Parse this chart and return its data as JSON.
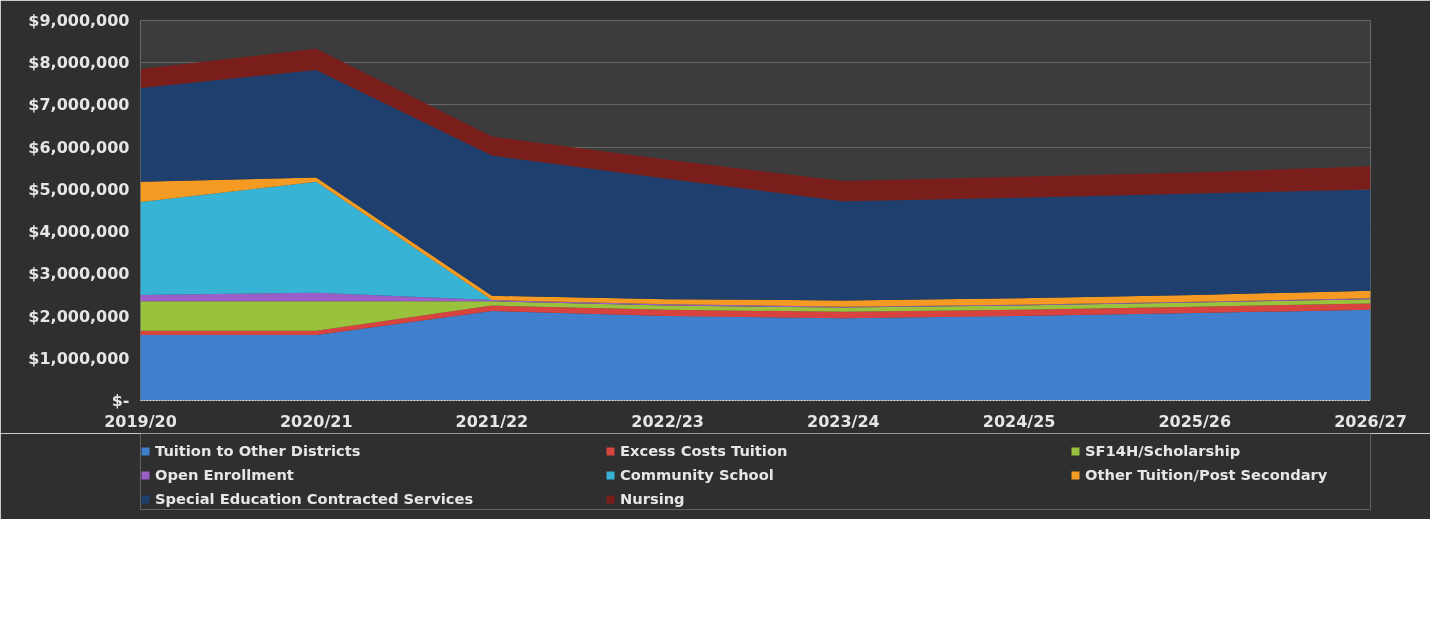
{
  "chart_data": {
    "type": "area",
    "stacked": true,
    "categories": [
      "2019/20",
      "2020/21",
      "2021/22",
      "2022/23",
      "2023/24",
      "2024/25",
      "2025/26",
      "2026/27"
    ],
    "series": [
      {
        "name": "Tuition to Other Districts",
        "color": "#3f7fce",
        "values": [
          1550000,
          1550000,
          2120000,
          2000000,
          1950000,
          2000000,
          2070000,
          2150000
        ]
      },
      {
        "name": "Excess Costs Tuition",
        "color": "#d9433f",
        "values": [
          100000,
          100000,
          130000,
          150000,
          150000,
          150000,
          150000,
          150000
        ]
      },
      {
        "name": "SF14H/Scholarship",
        "color": "#9bc23c",
        "values": [
          700000,
          700000,
          100000,
          100000,
          100000,
          100000,
          100000,
          100000
        ]
      },
      {
        "name": "Open Enrollment",
        "color": "#9b5fc9",
        "values": [
          150000,
          200000,
          30000,
          30000,
          20000,
          20000,
          20000,
          20000
        ]
      },
      {
        "name": "Community School",
        "color": "#37b3d6",
        "values": [
          2200000,
          2630000,
          0,
          0,
          0,
          0,
          0,
          0
        ]
      },
      {
        "name": "Other Tuition/Post Secondary",
        "color": "#f59a23",
        "values": [
          480000,
          100000,
          100000,
          120000,
          150000,
          150000,
          160000,
          180000
        ]
      },
      {
        "name": "Special Education Contracted Services",
        "color": "#1f3f6e",
        "values": [
          2220000,
          2550000,
          3320000,
          2850000,
          2350000,
          2380000,
          2400000,
          2400000
        ]
      },
      {
        "name": "Nursing",
        "color": "#7a1e1c",
        "values": [
          450000,
          500000,
          450000,
          450000,
          480000,
          500000,
          500000,
          550000
        ]
      }
    ],
    "ylim": [
      0,
      9000000
    ],
    "yticks": [
      {
        "value": 0,
        "label": "$-"
      },
      {
        "value": 1000000,
        "label": "$1,000,000"
      },
      {
        "value": 2000000,
        "label": "$2,000,000"
      },
      {
        "value": 3000000,
        "label": "$3,000,000"
      },
      {
        "value": 4000000,
        "label": "$4,000,000"
      },
      {
        "value": 5000000,
        "label": "$5,000,000"
      },
      {
        "value": 6000000,
        "label": "$6,000,000"
      },
      {
        "value": 7000000,
        "label": "$7,000,000"
      },
      {
        "value": 8000000,
        "label": "$8,000,000"
      },
      {
        "value": 9000000,
        "label": "$9,000,000"
      }
    ],
    "grid": "y",
    "legend": "bottom"
  }
}
